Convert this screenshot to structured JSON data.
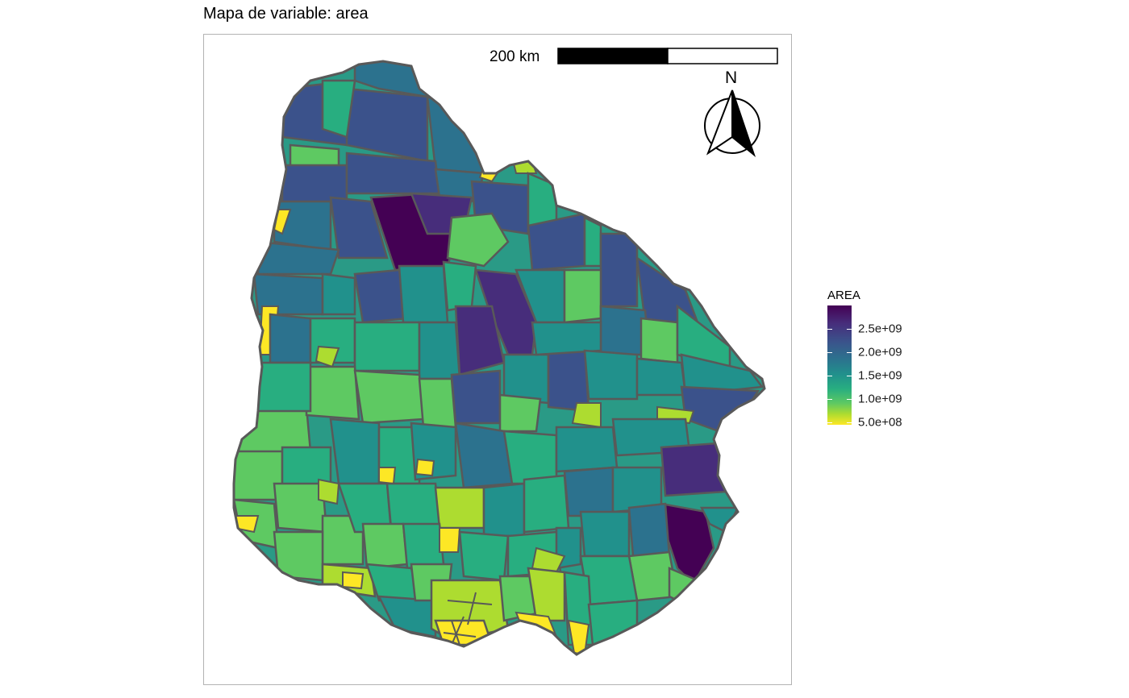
{
  "title": "Mapa de variable: area",
  "scalebar": {
    "label": "200 km"
  },
  "north_arrow": {
    "label": "N",
    "icon": "north-arrow-icon"
  },
  "legend": {
    "title": "AREA",
    "ticks": [
      {
        "label": "2.5e+09",
        "value": 2500000000
      },
      {
        "label": "2.0e+09",
        "value": 2000000000
      },
      {
        "label": "1.5e+09",
        "value": 1500000000
      },
      {
        "label": "1.0e+09",
        "value": 1000000000
      },
      {
        "label": "5.0e+08",
        "value": 500000000
      }
    ],
    "range": [
      150000000,
      2600000000
    ],
    "palette": "viridis (reversed)"
  },
  "colors": {
    "border": "#595959",
    "dark_purple": "#440154",
    "blue": "#3b528b",
    "teal": "#21918c",
    "green": "#5ec962",
    "yellow": "#fde725"
  }
}
